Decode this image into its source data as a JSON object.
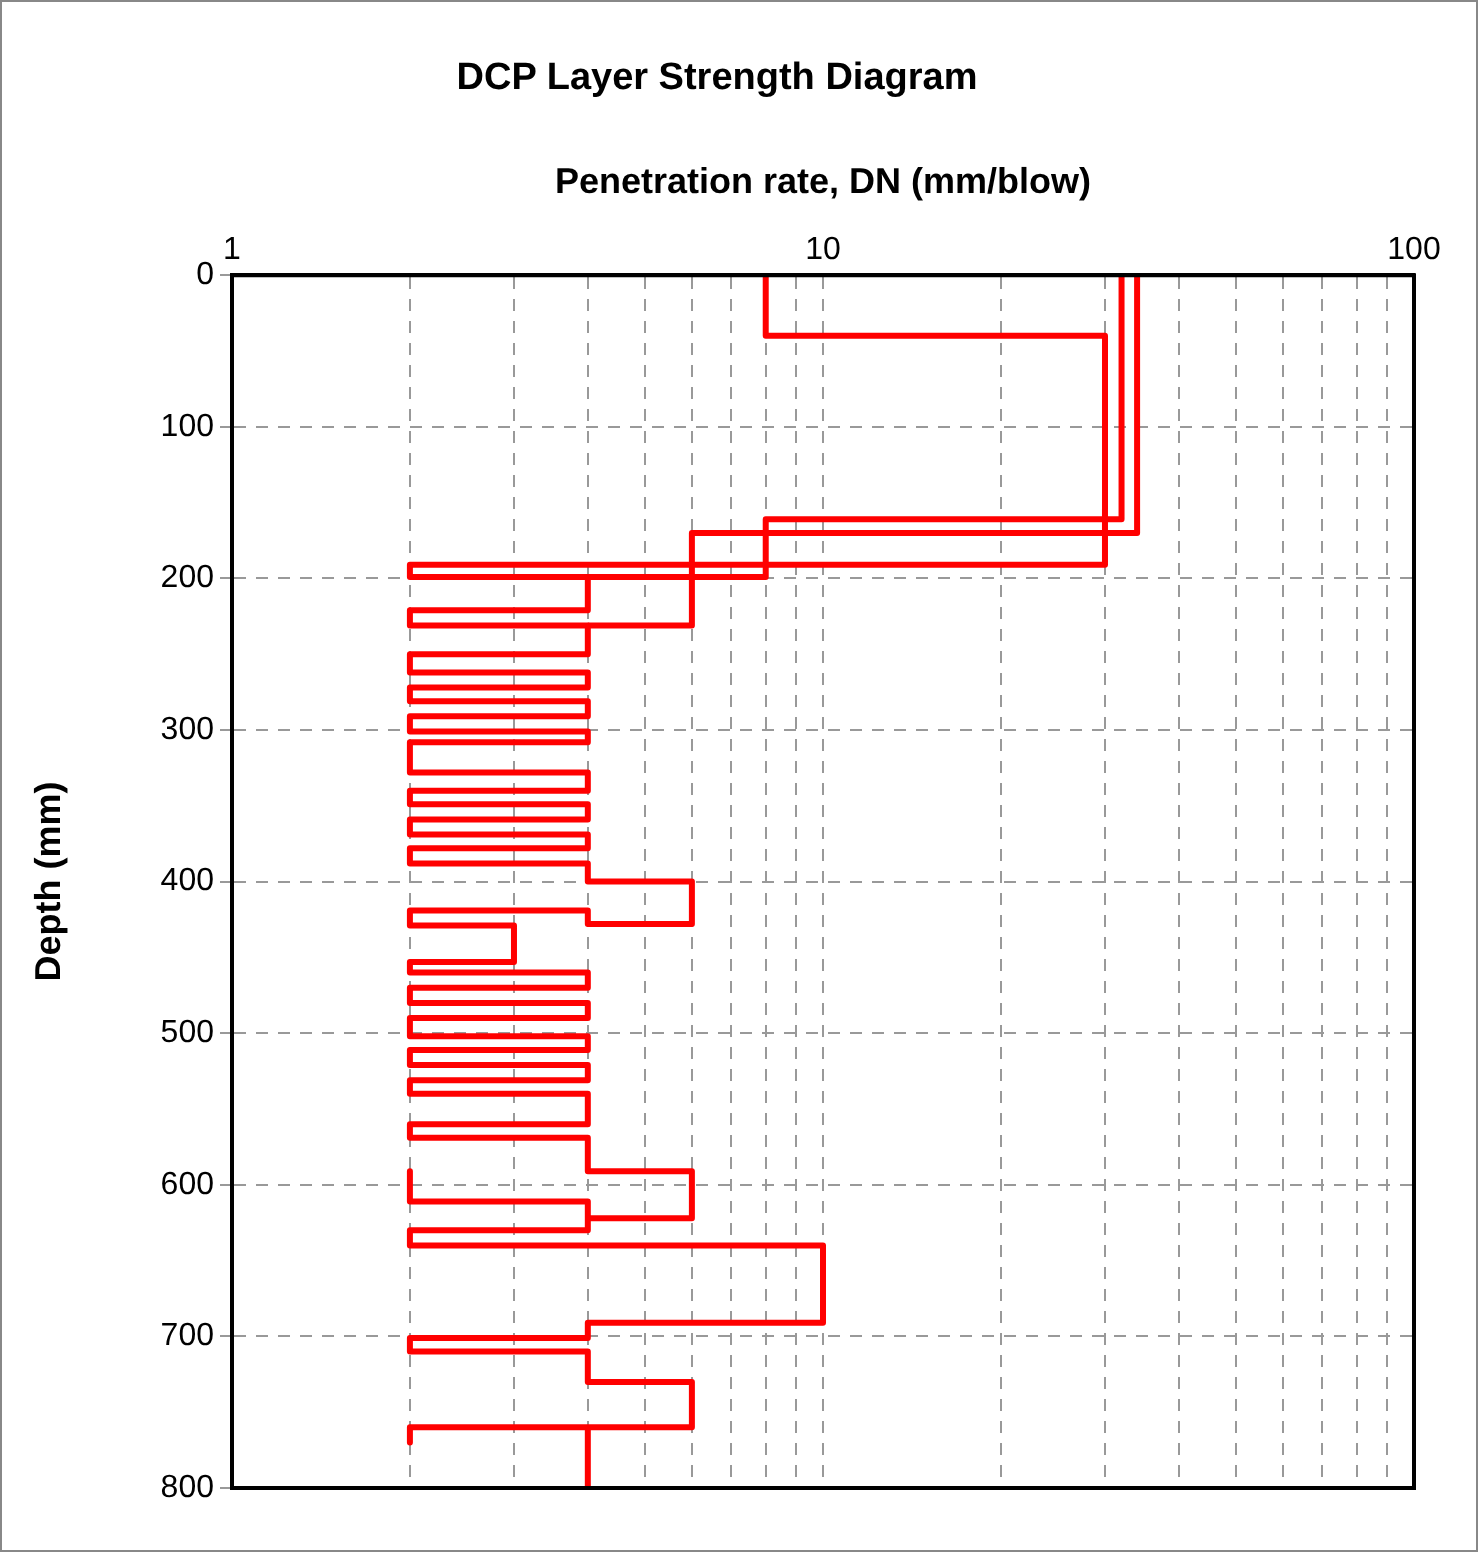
{
  "chart_data": {
    "type": "line",
    "title": "DCP Layer Strength Diagram",
    "xlabel": "Penetration rate, DN (mm/blow)",
    "ylabel": "Depth (mm)",
    "log": "x",
    "grid": true,
    "marker": "none",
    "xlim": [
      1,
      100
    ],
    "xticks": [
      1,
      {
        "value": 2,
        "label": null
      },
      {
        "value": 3,
        "label": null
      },
      {
        "value": 4,
        "label": null
      },
      {
        "value": 5,
        "label": null
      },
      {
        "value": 6,
        "label": null
      },
      {
        "value": 7,
        "label": null
      },
      {
        "value": 8,
        "label": null
      },
      {
        "value": 9,
        "label": null
      },
      10,
      {
        "value": 20,
        "label": null
      },
      {
        "value": 30,
        "label": null
      },
      {
        "value": 40,
        "label": null
      },
      {
        "value": 50,
        "label": null
      },
      {
        "value": 60,
        "label": null
      },
      {
        "value": 70,
        "label": null
      },
      {
        "value": 80,
        "label": null
      },
      {
        "value": 90,
        "label": null
      },
      100
    ],
    "ylim": [
      800,
      0
    ],
    "yticks": [
      0,
      100,
      200,
      300,
      400,
      500,
      600,
      700,
      800
    ],
    "series": [
      {
        "color": "#ff0000",
        "x": [
          8,
          8,
          30,
          30,
          2,
          2,
          4,
          4,
          2,
          2,
          4,
          4,
          2,
          2,
          4,
          4,
          2,
          2,
          4,
          4,
          2,
          2,
          4,
          4,
          2,
          2,
          4,
          4,
          2,
          2,
          4,
          4,
          2,
          2,
          4,
          4,
          2,
          2,
          4,
          4,
          6,
          6,
          4,
          4,
          2,
          2,
          3,
          3,
          2,
          2,
          4,
          4,
          2,
          2,
          4,
          4,
          2,
          2,
          4,
          4,
          2,
          2,
          4,
          4,
          2,
          2,
          4,
          4,
          2,
          2,
          4,
          4,
          6,
          6,
          4,
          4,
          2,
          2,
          2,
          4,
          4,
          2,
          2,
          10,
          10,
          4,
          4,
          2,
          2,
          4,
          4,
          6,
          6,
          2,
          2,
          2,
          4,
          4
        ],
        "values": [
          0,
          40,
          40,
          191,
          191,
          199,
          199,
          221,
          221,
          231,
          231,
          250,
          250,
          262,
          262,
          272,
          272,
          281,
          281,
          291,
          291,
          301,
          301,
          308,
          308,
          328,
          328,
          340,
          340,
          349,
          349,
          359,
          359,
          369,
          369,
          378,
          378,
          388,
          388,
          400,
          400,
          428,
          428,
          419,
          419,
          429,
          429,
          453,
          453,
          460,
          460,
          470,
          470,
          480,
          480,
          490,
          490,
          502,
          502,
          511,
          511,
          521,
          521,
          531,
          531,
          540,
          540,
          560,
          560,
          569,
          569,
          591,
          591,
          622,
          622,
          611,
          611,
          591,
          611,
          611,
          630,
          630,
          640,
          640,
          691,
          691,
          701,
          701,
          710,
          710,
          730,
          730,
          760,
          760,
          770,
          760,
          760,
          800
        ]
      },
      {
        "color": "#ff0000",
        "x": [
          32,
          32,
          8,
          8,
          4
        ],
        "values": [
          0,
          161,
          161,
          199,
          199
        ]
      },
      {
        "color": "#ff0000",
        "x": [
          34,
          34,
          6,
          6,
          4
        ],
        "values": [
          0,
          170,
          170,
          231,
          231
        ]
      }
    ]
  }
}
